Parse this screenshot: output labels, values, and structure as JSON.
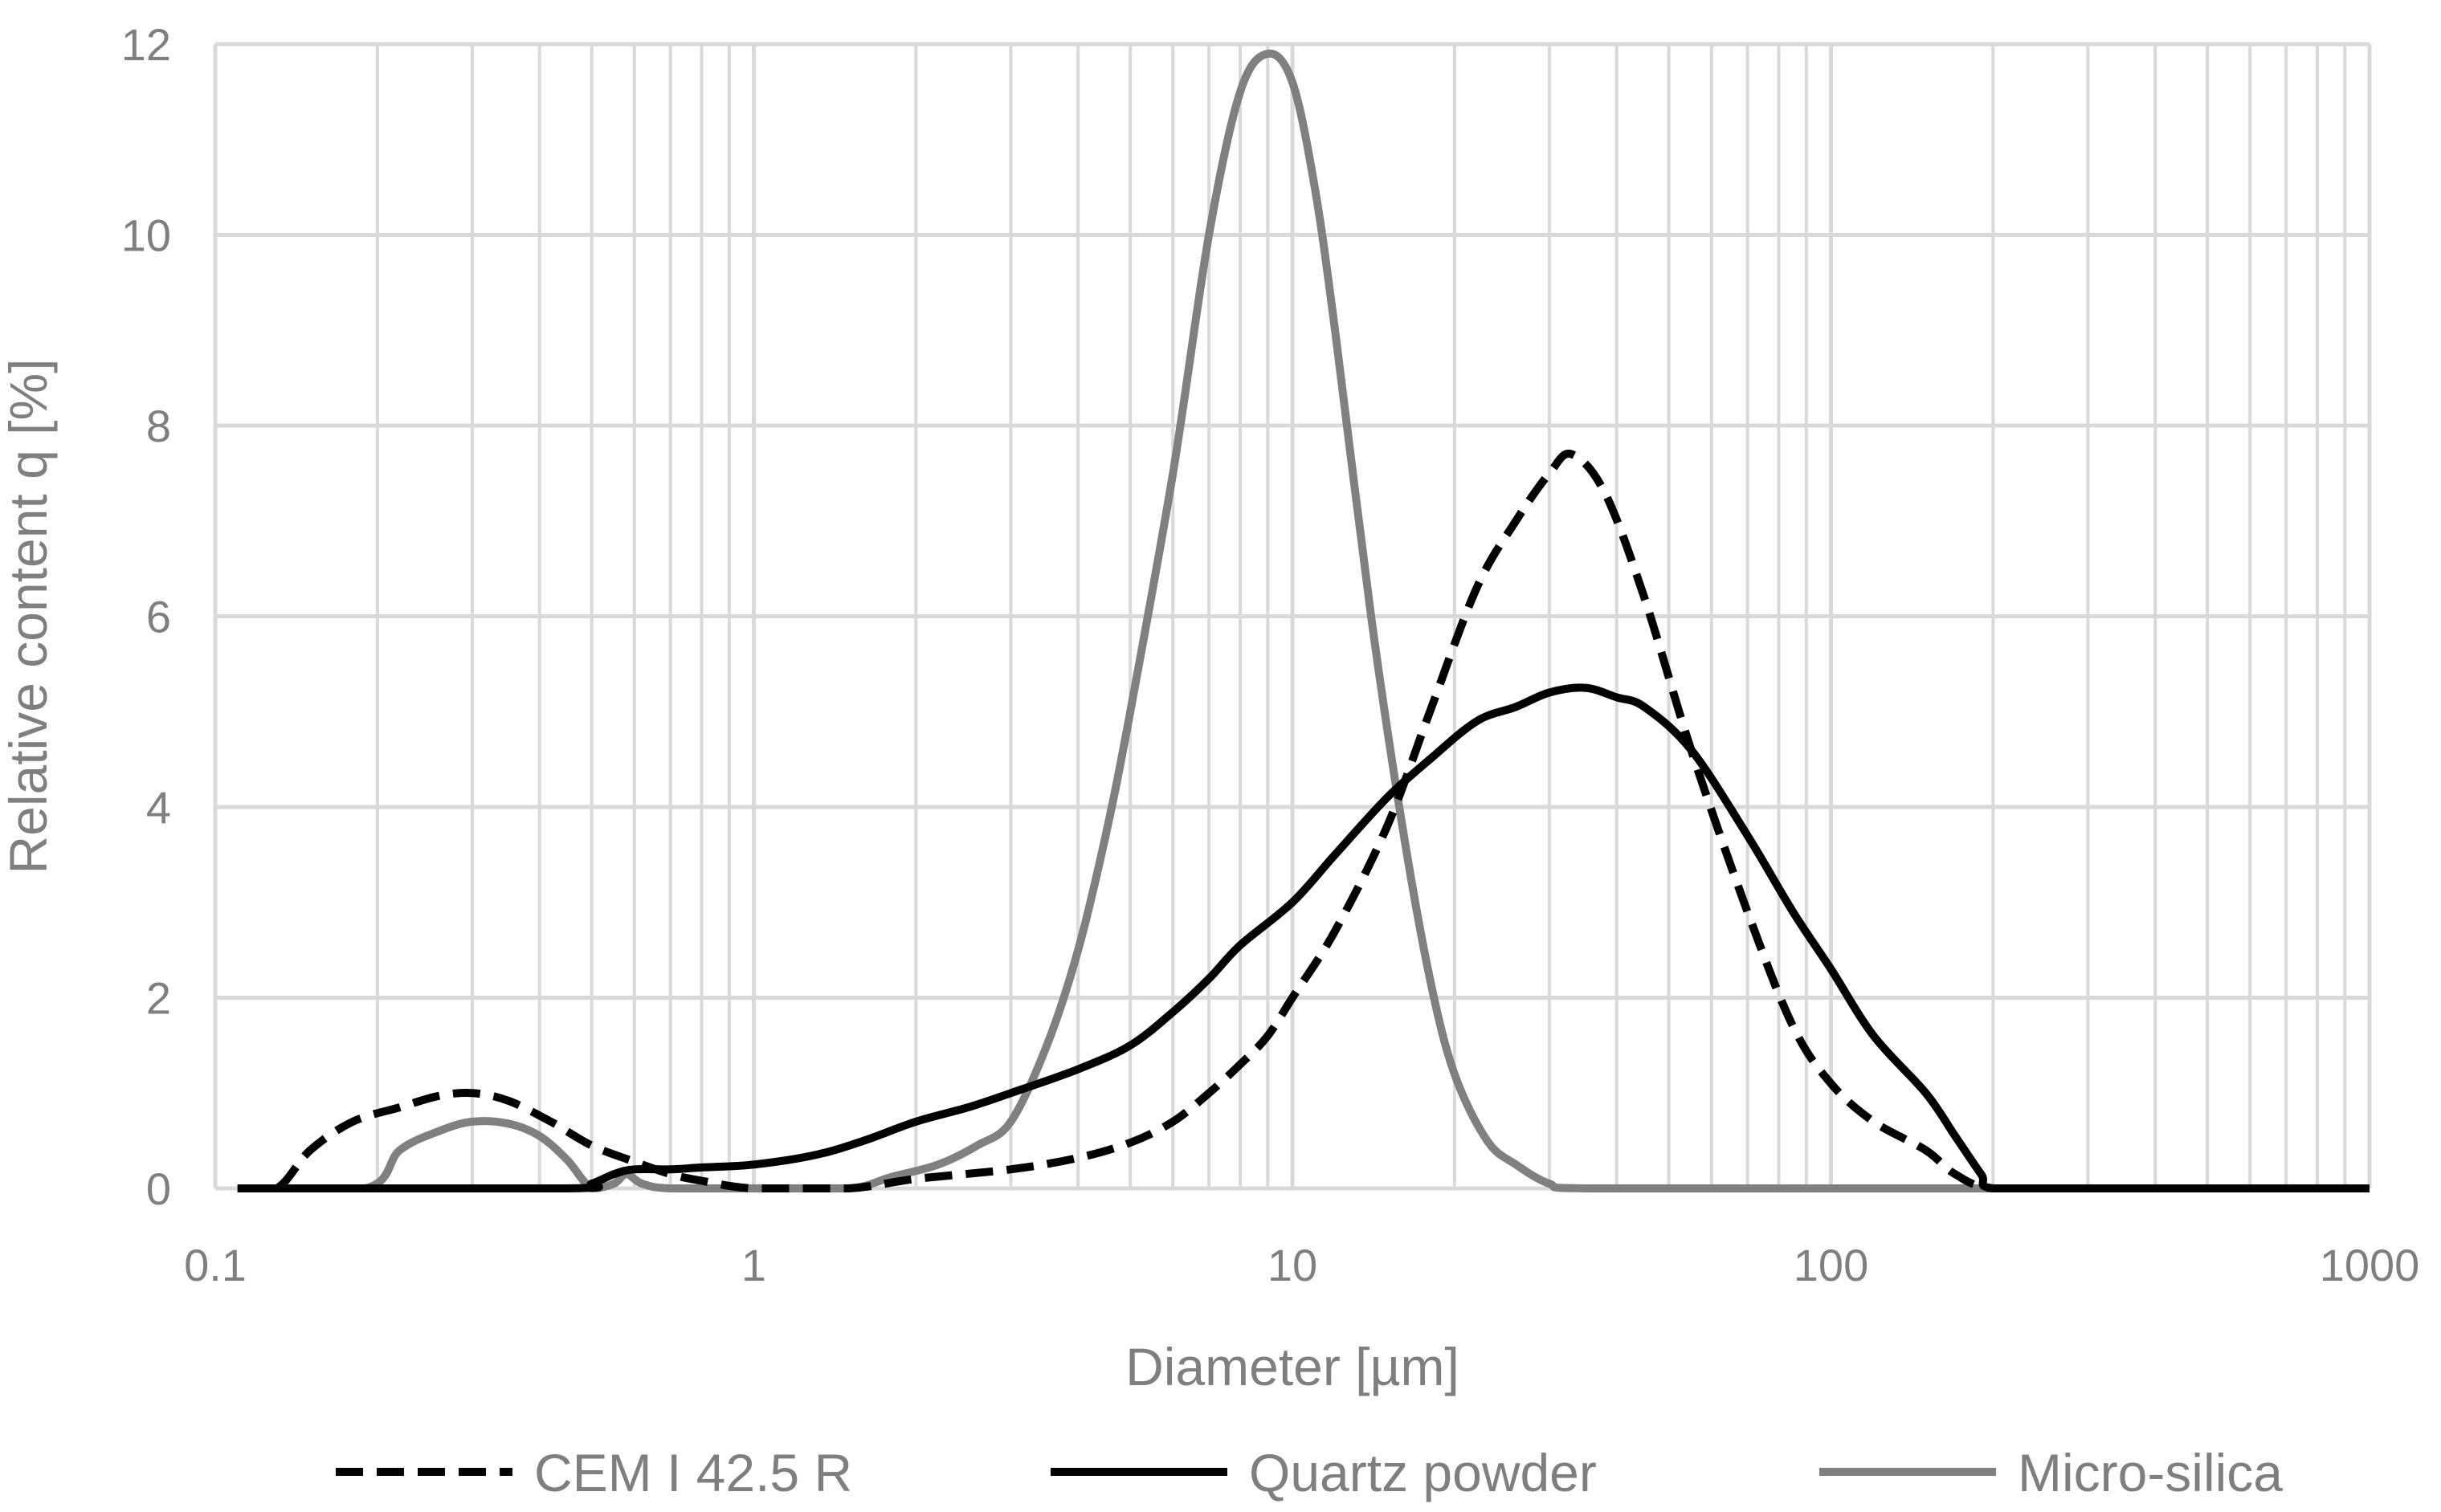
{
  "chart_data": {
    "type": "line",
    "title": "",
    "xlabel": "Diameter [µm]",
    "ylabel": "Relative content q [%]",
    "x_scale": "log",
    "xlim": [
      0.1,
      1000
    ],
    "ylim": [
      0,
      12
    ],
    "x_ticks": [
      "0.1",
      "1",
      "10",
      "100",
      "1000"
    ],
    "y_ticks": [
      "0",
      "2",
      "4",
      "6",
      "8",
      "10",
      "12"
    ],
    "grid": true,
    "legend": "bottom",
    "series": [
      {
        "name": "CEM I 42.5 R",
        "color": "#000000",
        "dash": "dashed",
        "points": [
          [
            0.11,
            0
          ],
          [
            0.13,
            0
          ],
          [
            0.15,
            0.4
          ],
          [
            0.18,
            0.7
          ],
          [
            0.22,
            0.85
          ],
          [
            0.26,
            0.97
          ],
          [
            0.3,
            1.0
          ],
          [
            0.35,
            0.92
          ],
          [
            0.42,
            0.7
          ],
          [
            0.5,
            0.45
          ],
          [
            0.6,
            0.28
          ],
          [
            0.7,
            0.15
          ],
          [
            0.8,
            0.08
          ],
          [
            1.0,
            0
          ],
          [
            1.5,
            0
          ],
          [
            2.0,
            0.1
          ],
          [
            3.0,
            0.2
          ],
          [
            4.0,
            0.32
          ],
          [
            5.0,
            0.48
          ],
          [
            6.0,
            0.7
          ],
          [
            7.0,
            1.0
          ],
          [
            8.0,
            1.3
          ],
          [
            9.0,
            1.6
          ],
          [
            10.0,
            2.0
          ],
          [
            12.0,
            2.7
          ],
          [
            15.0,
            3.8
          ],
          [
            18.0,
            5.0
          ],
          [
            22.0,
            6.3
          ],
          [
            26.0,
            7.0
          ],
          [
            30.0,
            7.5
          ],
          [
            33.0,
            7.7
          ],
          [
            38.0,
            7.3
          ],
          [
            45.0,
            6.2
          ],
          [
            55.0,
            4.6
          ],
          [
            70.0,
            2.9
          ],
          [
            85.0,
            1.7
          ],
          [
            100.0,
            1.1
          ],
          [
            120.0,
            0.7
          ],
          [
            150.0,
            0.4
          ],
          [
            170.0,
            0.15
          ],
          [
            200.0,
            0
          ],
          [
            300.0,
            0
          ],
          [
            1000.0,
            0
          ]
        ]
      },
      {
        "name": "Quartz powder",
        "color": "#000000",
        "dash": "solid",
        "points": [
          [
            0.11,
            0
          ],
          [
            0.45,
            0
          ],
          [
            0.5,
            0.05
          ],
          [
            0.55,
            0.15
          ],
          [
            0.6,
            0.2
          ],
          [
            0.7,
            0.2
          ],
          [
            0.8,
            0.22
          ],
          [
            1.0,
            0.25
          ],
          [
            1.3,
            0.35
          ],
          [
            1.6,
            0.5
          ],
          [
            2.0,
            0.7
          ],
          [
            2.5,
            0.85
          ],
          [
            3.0,
            1.0
          ],
          [
            4.0,
            1.25
          ],
          [
            5.0,
            1.5
          ],
          [
            6.0,
            1.85
          ],
          [
            7.0,
            2.2
          ],
          [
            8.0,
            2.55
          ],
          [
            10.0,
            3.0
          ],
          [
            12.0,
            3.5
          ],
          [
            15.0,
            4.1
          ],
          [
            18.0,
            4.5
          ],
          [
            22.0,
            4.9
          ],
          [
            26.0,
            5.05
          ],
          [
            30.0,
            5.2
          ],
          [
            35.0,
            5.25
          ],
          [
            40.0,
            5.15
          ],
          [
            45.0,
            5.05
          ],
          [
            55.0,
            4.6
          ],
          [
            70.0,
            3.7
          ],
          [
            85.0,
            2.9
          ],
          [
            100.0,
            2.3
          ],
          [
            120.0,
            1.6
          ],
          [
            150.0,
            1.0
          ],
          [
            170.0,
            0.55
          ],
          [
            190.0,
            0.15
          ],
          [
            200.0,
            0
          ],
          [
            300.0,
            0
          ],
          [
            1000.0,
            0
          ]
        ]
      },
      {
        "name": "Micro-silica",
        "color": "#808080",
        "dash": "solid",
        "points": [
          [
            0.11,
            0
          ],
          [
            0.19,
            0
          ],
          [
            0.22,
            0.4
          ],
          [
            0.26,
            0.6
          ],
          [
            0.3,
            0.7
          ],
          [
            0.35,
            0.68
          ],
          [
            0.4,
            0.55
          ],
          [
            0.45,
            0.3
          ],
          [
            0.5,
            0
          ],
          [
            0.55,
            0.05
          ],
          [
            0.58,
            0.15
          ],
          [
            0.62,
            0.05
          ],
          [
            0.7,
            0
          ],
          [
            1.0,
            0
          ],
          [
            1.5,
            0
          ],
          [
            1.8,
            0.12
          ],
          [
            2.2,
            0.25
          ],
          [
            2.6,
            0.45
          ],
          [
            3.0,
            0.7
          ],
          [
            3.5,
            1.5
          ],
          [
            4.0,
            2.5
          ],
          [
            4.5,
            3.7
          ],
          [
            5.0,
            5.0
          ],
          [
            6.0,
            7.5
          ],
          [
            7.0,
            10.0
          ],
          [
            8.0,
            11.5
          ],
          [
            9.0,
            11.9
          ],
          [
            10.0,
            11.6
          ],
          [
            11.0,
            10.5
          ],
          [
            12.0,
            9.0
          ],
          [
            14.0,
            6.0
          ],
          [
            16.0,
            3.8
          ],
          [
            18.0,
            2.2
          ],
          [
            20.0,
            1.2
          ],
          [
            23.0,
            0.5
          ],
          [
            26.0,
            0.25
          ],
          [
            30.0,
            0.05
          ],
          [
            35.0,
            0
          ],
          [
            100.0,
            0
          ],
          [
            1000.0,
            0
          ]
        ]
      }
    ]
  }
}
